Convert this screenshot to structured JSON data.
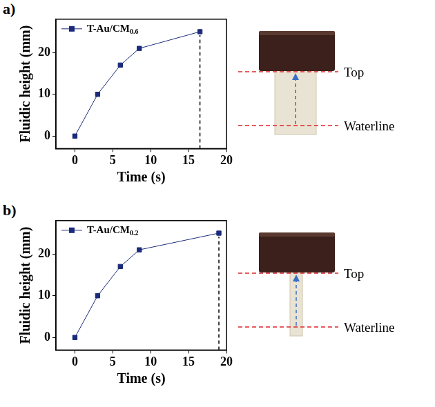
{
  "chart_data": [
    {
      "type": "line",
      "panel_label": "a)",
      "x_label": "Time (s)",
      "y_label": "Fluidic height (mm)",
      "x": [
        0,
        3,
        6,
        8.5,
        16.5
      ],
      "series": [
        {
          "name": "T-Au/CM0.6",
          "color": "#1b2a7a",
          "marker": "square",
          "line_style": "solid",
          "values": [
            0,
            10,
            17,
            21,
            25
          ]
        }
      ],
      "xlim": [
        -2.5,
        20
      ],
      "xticks": [
        0,
        5,
        10,
        15,
        20
      ],
      "ylim": [
        -3,
        28
      ],
      "yticks": [
        0,
        10,
        20
      ],
      "grid": false,
      "legend": "upper left",
      "vline_x": 16.5,
      "photo_labels": [
        "Top",
        "Waterline"
      ]
    },
    {
      "type": "line",
      "panel_label": "b)",
      "x_label": "Time (s)",
      "y_label": "Fluidic height (mm)",
      "x": [
        0,
        3,
        6,
        8.5,
        19
      ],
      "series": [
        {
          "name": "T-Au/CM0.2",
          "color": "#1b2a7a",
          "marker": "square",
          "line_style": "solid",
          "values": [
            0,
            10,
            17,
            21,
            25
          ]
        }
      ],
      "xlim": [
        -2.5,
        20
      ],
      "xticks": [
        0,
        5,
        10,
        15,
        20
      ],
      "ylim": [
        -3,
        28
      ],
      "yticks": [
        0,
        10,
        20
      ],
      "grid": false,
      "legend": "upper left",
      "vline_x": 19,
      "photo_labels": [
        "Top",
        "Waterline"
      ]
    }
  ]
}
